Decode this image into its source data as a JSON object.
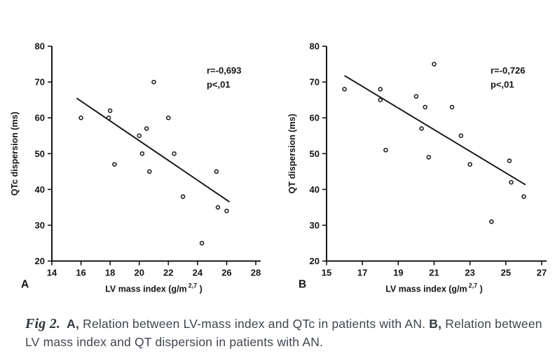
{
  "caption": {
    "fig_label": "Fig 2.",
    "part_a_label": "A,",
    "part_a_text": "Relation between LV-mass index and QTc in patients with AN.",
    "part_b_label": "B,",
    "part_b_text": "Relation between LV mass index and QT dispersion in patients with AN."
  },
  "colors": {
    "ink": "#151515",
    "caption_text": "#40454e",
    "background": "#ffffff"
  },
  "chart_data": [
    {
      "id": "panel-a",
      "type": "scatter",
      "panel_label": "A",
      "title": "",
      "xlabel_main": "LV mass index (g/m",
      "xlabel_sup": "2,7",
      "xlabel_close": " )",
      "ylabel": "QTc dispersion (ms)",
      "xlim": [
        14,
        28
      ],
      "ylim": [
        20,
        80
      ],
      "xticks": [
        14,
        16,
        18,
        20,
        22,
        24,
        26,
        28
      ],
      "yticks": [
        20,
        30,
        40,
        50,
        60,
        70,
        80
      ],
      "grid": false,
      "annotation_lines": [
        "r=-0,693",
        "p<,01"
      ],
      "points": [
        [
          16,
          60
        ],
        [
          18,
          62
        ],
        [
          17.9,
          60
        ],
        [
          18.3,
          47
        ],
        [
          20,
          55
        ],
        [
          20.5,
          57
        ],
        [
          20.2,
          50
        ],
        [
          21,
          70
        ],
        [
          20.7,
          45
        ],
        [
          22,
          60
        ],
        [
          22.4,
          50
        ],
        [
          23,
          38
        ],
        [
          25.3,
          45
        ],
        [
          25.4,
          35
        ],
        [
          26,
          34
        ],
        [
          24.3,
          25
        ]
      ],
      "trend_line": {
        "x1": 15.7,
        "y1": 65.5,
        "x2": 26.2,
        "y2": 36.5
      }
    },
    {
      "id": "panel-b",
      "type": "scatter",
      "panel_label": "B",
      "title": "",
      "xlabel_main": "LV mass index (g/m",
      "xlabel_sup": "2,7",
      "xlabel_close": " )",
      "ylabel": "QT dispersion (ms)",
      "xlim": [
        15,
        27
      ],
      "ylim": [
        20,
        80
      ],
      "xticks": [
        15,
        17,
        19,
        21,
        23,
        25,
        27
      ],
      "yticks": [
        20,
        30,
        40,
        50,
        60,
        70,
        80
      ],
      "grid": false,
      "annotation_lines": [
        "r=-0,726",
        "p<,01"
      ],
      "points": [
        [
          16,
          68
        ],
        [
          18,
          68
        ],
        [
          18,
          65
        ],
        [
          20,
          66
        ],
        [
          20.5,
          63
        ],
        [
          21,
          75
        ],
        [
          22,
          63
        ],
        [
          20.3,
          57
        ],
        [
          22.5,
          55
        ],
        [
          18.3,
          51
        ],
        [
          20.7,
          49
        ],
        [
          23,
          47
        ],
        [
          25.2,
          48
        ],
        [
          25.3,
          42
        ],
        [
          26,
          38
        ],
        [
          24.2,
          31
        ]
      ],
      "trend_line": {
        "x1": 16,
        "y1": 71.8,
        "x2": 26.1,
        "y2": 41.3
      }
    }
  ]
}
